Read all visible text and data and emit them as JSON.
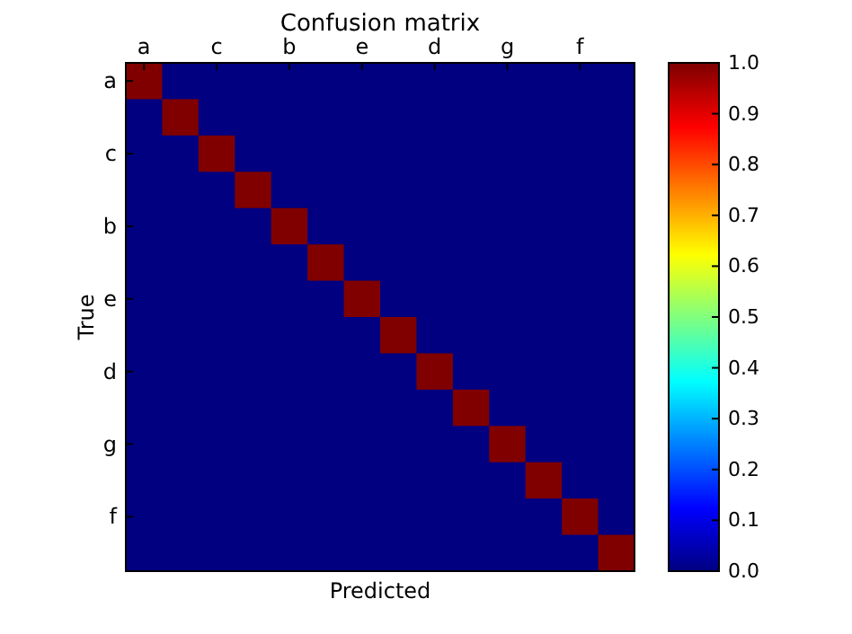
{
  "chart_data": {
    "type": "heatmap",
    "title": "Confusion matrix",
    "xlabel": "Predicted",
    "ylabel": "True",
    "categories": [
      "a",
      null,
      "c",
      null,
      "b",
      null,
      "e",
      null,
      "d",
      null,
      "g",
      null,
      "f",
      null
    ],
    "y_categories": [
      "a",
      null,
      "c",
      null,
      "b",
      null,
      "e",
      null,
      "d",
      null,
      "g",
      null,
      "f",
      null
    ],
    "cells": [
      [
        1,
        0,
        0,
        0,
        0,
        0,
        0,
        0,
        0,
        0,
        0,
        0,
        0,
        0
      ],
      [
        0,
        1,
        0,
        0,
        0,
        0,
        0,
        0,
        0,
        0,
        0,
        0,
        0,
        0
      ],
      [
        0,
        0,
        1,
        0,
        0,
        0,
        0,
        0,
        0,
        0,
        0,
        0,
        0,
        0
      ],
      [
        0,
        0,
        0,
        1,
        0,
        0,
        0,
        0,
        0,
        0,
        0,
        0,
        0,
        0
      ],
      [
        0,
        0,
        0,
        0,
        1,
        0,
        0,
        0,
        0,
        0,
        0,
        0,
        0,
        0
      ],
      [
        0,
        0,
        0,
        0,
        0,
        1,
        0,
        0,
        0,
        0,
        0,
        0,
        0,
        0
      ],
      [
        0,
        0,
        0,
        0,
        0,
        0,
        1,
        0,
        0,
        0,
        0,
        0,
        0,
        0
      ],
      [
        0,
        0,
        0,
        0,
        0,
        0,
        0,
        1,
        0,
        0,
        0,
        0,
        0,
        0
      ],
      [
        0,
        0,
        0,
        0,
        0,
        0,
        0,
        0,
        1,
        0,
        0,
        0,
        0,
        0
      ],
      [
        0,
        0,
        0,
        0,
        0,
        0,
        0,
        0,
        0,
        1,
        0,
        0,
        0,
        0
      ],
      [
        0,
        0,
        0,
        0,
        0,
        0,
        0,
        0,
        0,
        0,
        1,
        0,
        0,
        0
      ],
      [
        0,
        0,
        0,
        0,
        0,
        0,
        0,
        0,
        0,
        0,
        0,
        1,
        0,
        0
      ],
      [
        0,
        0,
        0,
        0,
        0,
        0,
        0,
        0,
        0,
        0,
        0,
        0,
        1,
        0
      ],
      [
        0,
        0,
        0,
        0,
        0,
        0,
        0,
        0,
        0,
        0,
        0,
        0,
        0,
        1
      ]
    ],
    "clim": [
      0,
      1
    ],
    "cticks": [
      {
        "value": 0,
        "label": "0.0"
      },
      {
        "value": 0.1,
        "label": "0.1"
      },
      {
        "value": 0.2,
        "label": "0.2"
      },
      {
        "value": 0.3,
        "label": "0.3"
      },
      {
        "value": 0.4,
        "label": "0.4"
      },
      {
        "value": 0.5,
        "label": "0.5"
      },
      {
        "value": 0.6,
        "label": "0.6"
      },
      {
        "value": 0.7,
        "label": "0.7"
      },
      {
        "value": 0.8,
        "label": "0.8"
      },
      {
        "value": 0.9,
        "label": "0.9"
      },
      {
        "value": 1,
        "label": "1.0"
      }
    ]
  }
}
